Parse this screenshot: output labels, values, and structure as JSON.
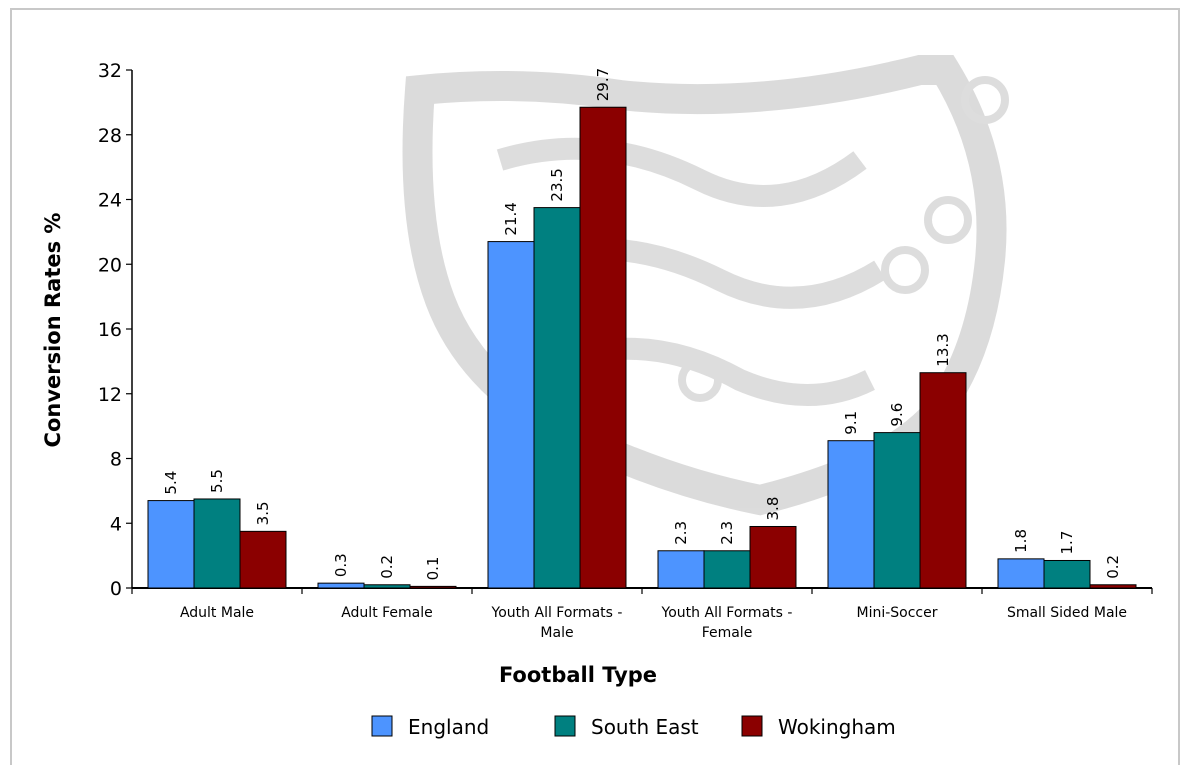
{
  "chart_data": {
    "type": "bar",
    "title": "",
    "xlabel": "Football Type",
    "ylabel": "Conversion Rates %",
    "categories": [
      [
        "Adult Male"
      ],
      [
        "Adult Female"
      ],
      [
        "Youth All Formats -",
        "Male"
      ],
      [
        "Youth All Formats -",
        "Female"
      ],
      [
        "Mini-Soccer"
      ],
      [
        "Small Sided Male"
      ]
    ],
    "series": [
      {
        "name": "England",
        "color": "#4d94ff",
        "values": [
          5.4,
          0.3,
          21.4,
          2.3,
          9.1,
          1.8
        ]
      },
      {
        "name": "South East",
        "color": "#008080",
        "values": [
          5.5,
          0.2,
          23.5,
          2.3,
          9.6,
          1.7
        ]
      },
      {
        "name": "Wokingham",
        "color": "#8b0000",
        "values": [
          3.5,
          0.1,
          29.7,
          3.8,
          13.3,
          0.2
        ]
      }
    ],
    "ylim": [
      0,
      32
    ],
    "yticks": [
      0,
      4,
      8,
      12,
      16,
      20,
      24,
      28,
      32
    ],
    "grid": false,
    "legend": "bottom"
  }
}
